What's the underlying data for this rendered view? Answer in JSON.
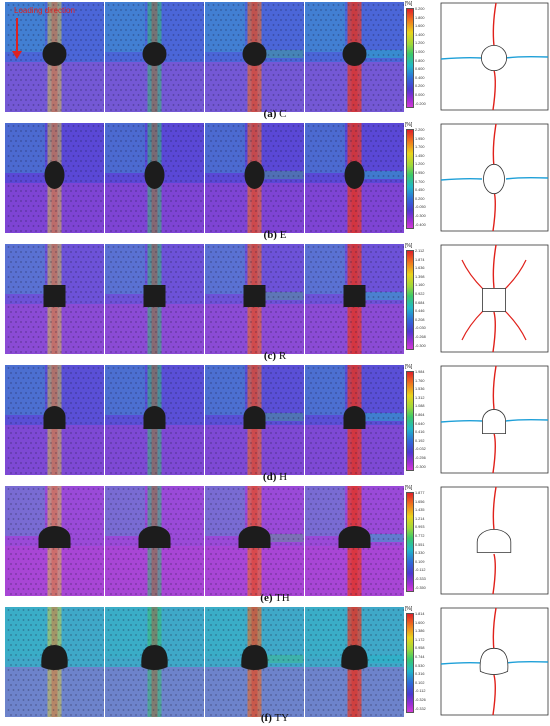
{
  "load_label": "Loading direction",
  "strain_unit": "[%]",
  "rows": [
    {
      "caption_letter": "(a)",
      "caption_name": "C",
      "shape": "circle",
      "ticks": [
        "0.200",
        "1.800",
        "1.600",
        "1.400",
        "1.200",
        "1.000",
        "0.800",
        "0.600",
        "0.400",
        "0.200",
        "0.000",
        "-0.200"
      ]
    },
    {
      "caption_letter": "(b)",
      "caption_name": "E",
      "shape": "ellipse",
      "ticks": [
        "2.200",
        "1.950",
        "1.700",
        "1.450",
        "1.200",
        "0.950",
        "0.700",
        "0.450",
        "0.200",
        "-0.050",
        "-0.300",
        "-0.400"
      ]
    },
    {
      "caption_letter": "(c)",
      "caption_name": "R",
      "shape": "square",
      "ticks": [
        "2.112",
        "1.874",
        "1.636",
        "1.398",
        "1.160",
        "0.922",
        "0.684",
        "0.446",
        "0.208",
        "-0.030",
        "-0.268",
        "-0.300"
      ]
    },
    {
      "caption_letter": "(d)",
      "caption_name": "H",
      "shape": "horseshoe",
      "ticks": [
        "1.984",
        "1.760",
        "1.536",
        "1.312",
        "1.088",
        "0.864",
        "0.640",
        "0.416",
        "0.192",
        "-0.032",
        "-0.256",
        "-0.300"
      ]
    },
    {
      "caption_letter": "(e)",
      "caption_name": "TH",
      "shape": "tunnel",
      "ticks": [
        "1.877",
        "1.656",
        "1.435",
        "1.214",
        "0.993",
        "0.772",
        "0.551",
        "0.330",
        "0.109",
        "-0.112",
        "-0.333",
        "-0.350"
      ]
    },
    {
      "caption_letter": "(f)",
      "caption_name": "TY",
      "shape": "arch",
      "ticks": [
        "1.814",
        "1.600",
        "1.386",
        "1.172",
        "0.958",
        "0.744",
        "0.530",
        "0.316",
        "0.102",
        "-0.112",
        "-0.326",
        "-0.332"
      ]
    }
  ]
}
